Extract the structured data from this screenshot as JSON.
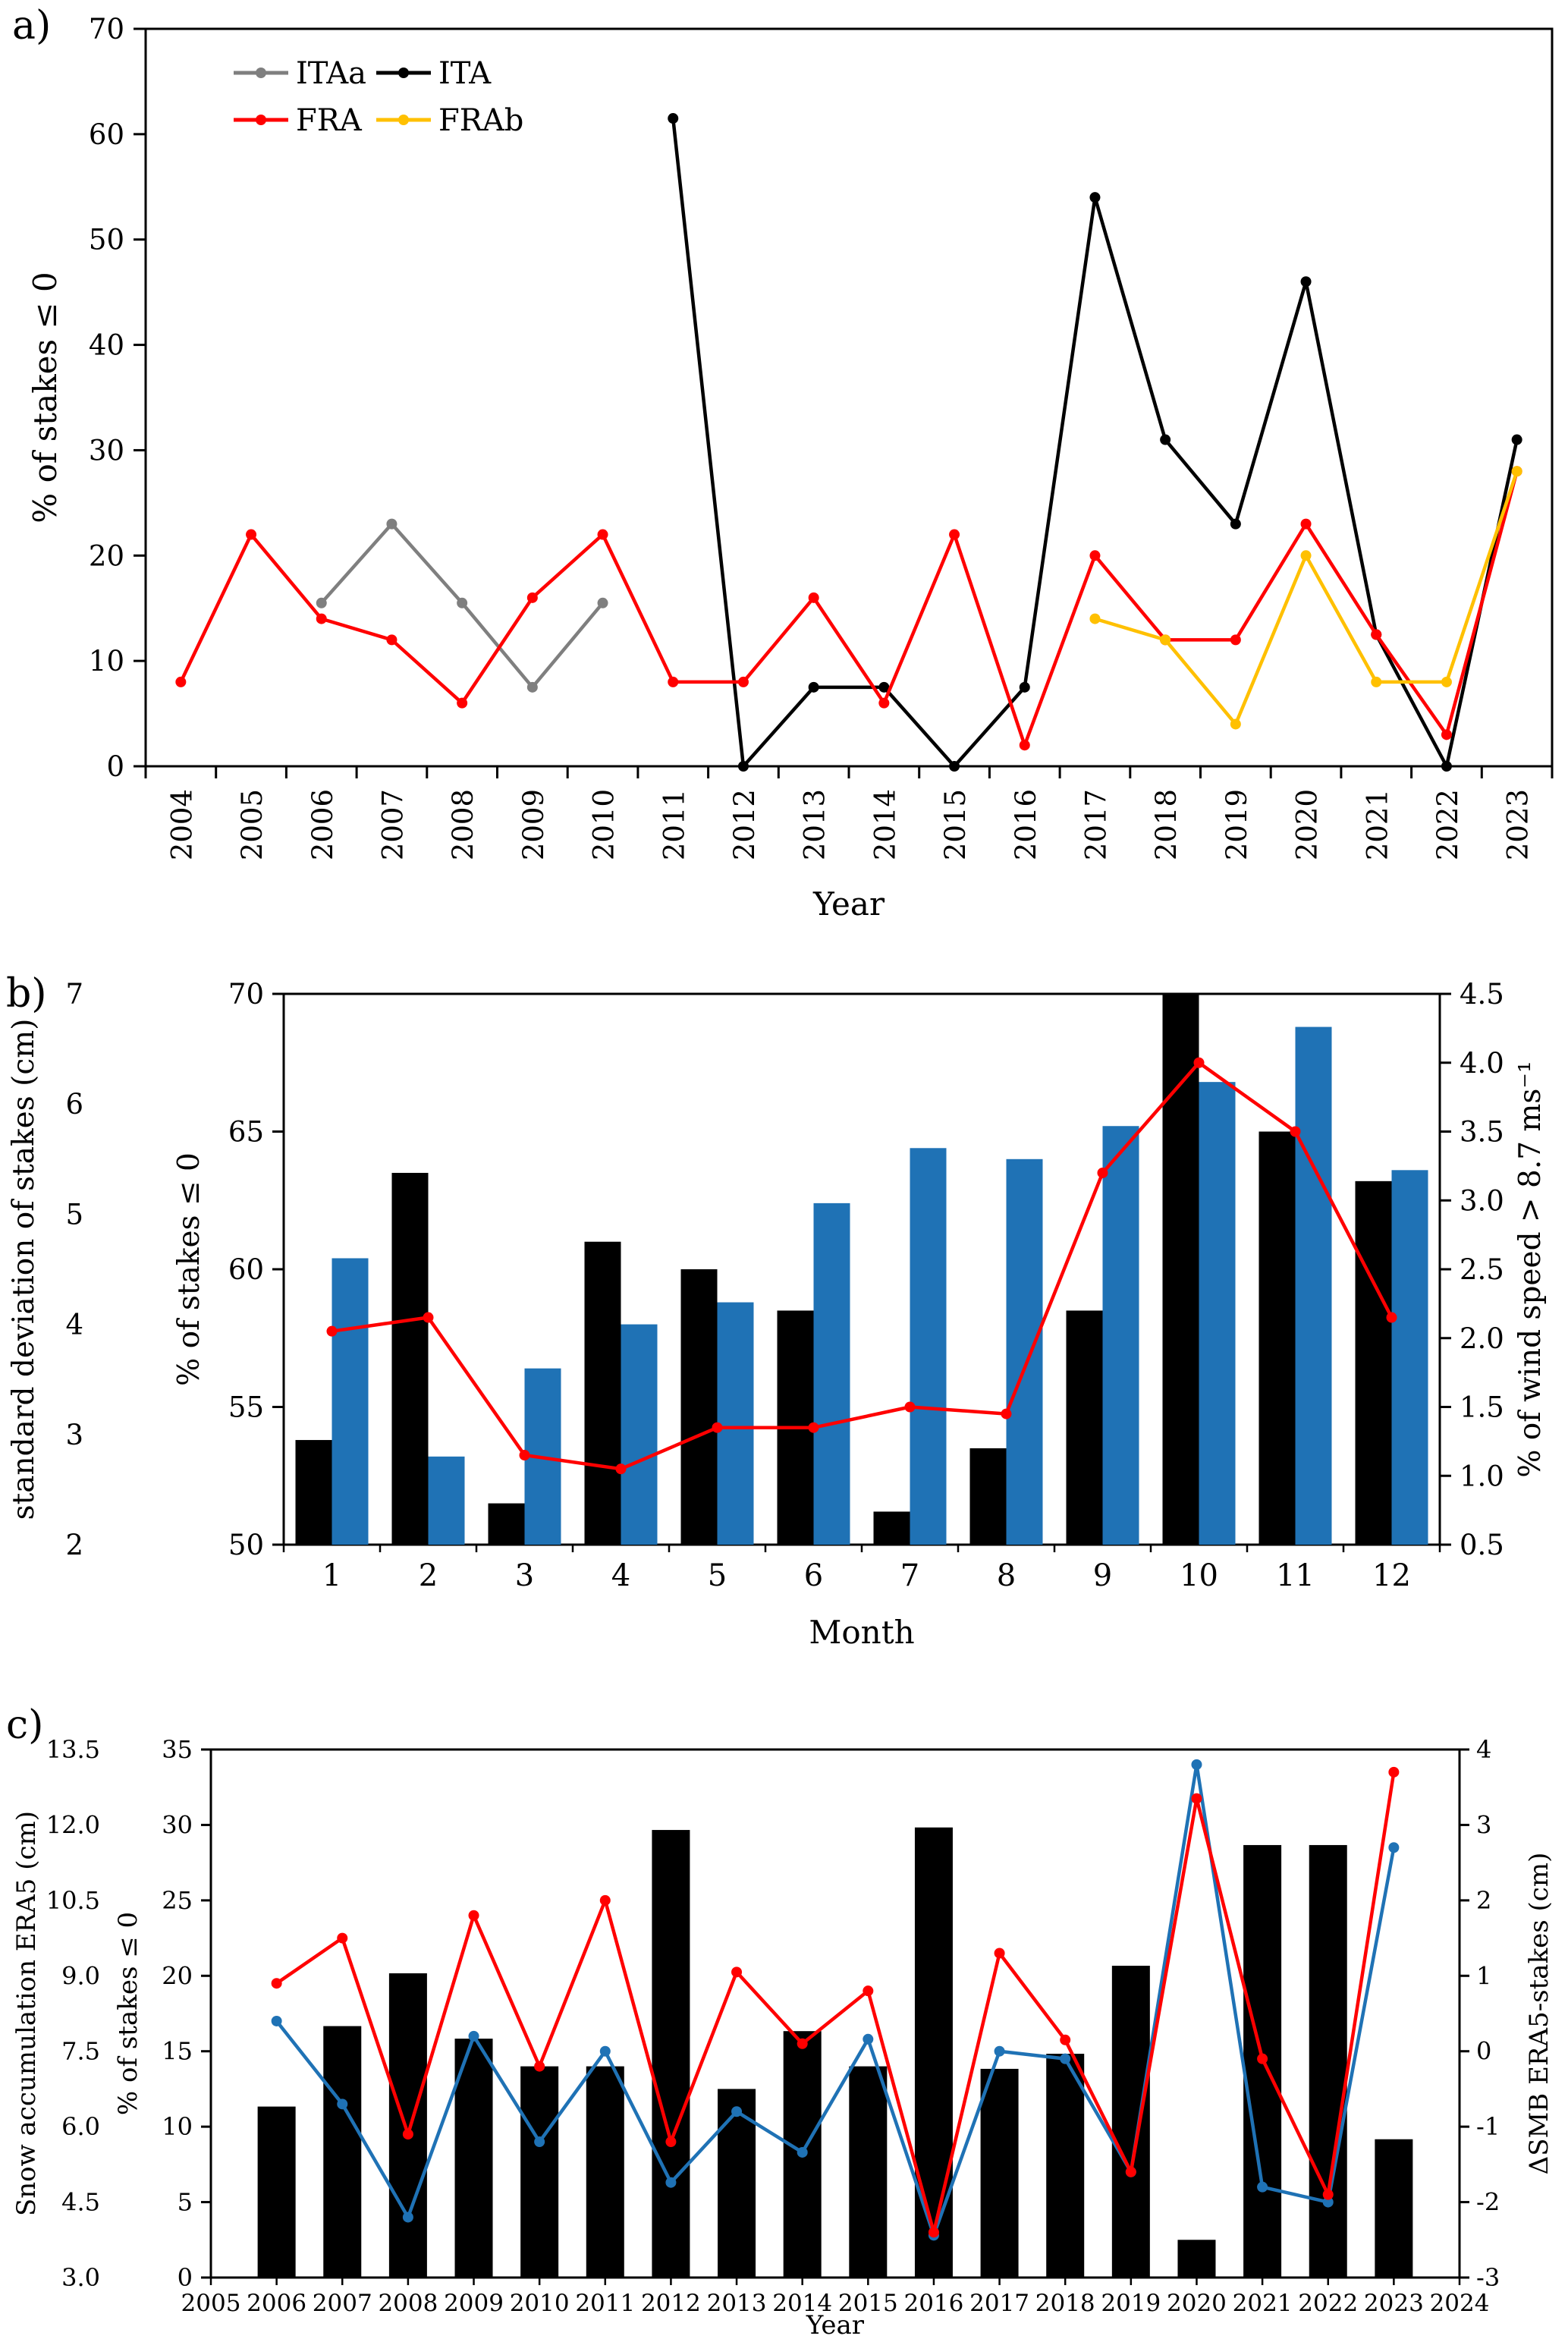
{
  "panels": {
    "a": {
      "label": "a)"
    },
    "b": {
      "label": "b)"
    },
    "c": {
      "label": "c)"
    }
  },
  "colors": {
    "black": "#000000",
    "gray": "#7F7F7F",
    "red": "#FF0000",
    "gold": "#FFC000",
    "blue": "#1F72B5"
  },
  "chart_data": [
    {
      "id": "a",
      "type": "line",
      "xlabel": "Year",
      "ylabel": "% of stakes ≤ 0",
      "ylim": [
        0,
        70
      ],
      "ytick_step": 10,
      "categories": [
        2004,
        2005,
        2006,
        2007,
        2008,
        2009,
        2010,
        2011,
        2012,
        2013,
        2014,
        2015,
        2016,
        2017,
        2018,
        2019,
        2020,
        2021,
        2022,
        2023
      ],
      "legend_rows": [
        [
          "ITAa",
          "ITA"
        ],
        [
          "FRA",
          "FRAb"
        ]
      ],
      "series": [
        {
          "name": "ITAa",
          "color": "#7F7F7F",
          "values": [
            null,
            null,
            15.5,
            23,
            15.5,
            7.5,
            15.5,
            null,
            null,
            null,
            null,
            null,
            null,
            null,
            null,
            null,
            null,
            null,
            null,
            null
          ]
        },
        {
          "name": "ITA",
          "color": "#000000",
          "values": [
            null,
            null,
            null,
            null,
            null,
            null,
            null,
            61.5,
            0,
            7.5,
            7.5,
            0,
            7.5,
            54,
            31,
            23,
            46,
            12.5,
            0,
            31
          ]
        },
        {
          "name": "FRA",
          "color": "#FF0000",
          "values": [
            8,
            22,
            14,
            12,
            6,
            16,
            22,
            8,
            8,
            16,
            6,
            22,
            2,
            20,
            12,
            12,
            23,
            12.5,
            3,
            28
          ]
        },
        {
          "name": "FRAb",
          "color": "#FFC000",
          "values": [
            null,
            null,
            null,
            null,
            null,
            null,
            null,
            null,
            null,
            null,
            null,
            null,
            null,
            14,
            12,
            4,
            20,
            8,
            8,
            28
          ]
        }
      ]
    },
    {
      "id": "b",
      "type": "bar+line",
      "xlabel": "Month",
      "categories": [
        1,
        2,
        3,
        4,
        5,
        6,
        7,
        8,
        9,
        10,
        11,
        12
      ],
      "left_axis_blue": {
        "label": "standard deviation of stakes (cm)",
        "lim": [
          2,
          7
        ],
        "step": 1,
        "color": "#1F72B5"
      },
      "left_axis_black": {
        "label": "% of stakes ≤ 0",
        "lim": [
          50,
          70
        ],
        "step": 5,
        "color": "#000000"
      },
      "right_axis_red": {
        "label": "% of wind speed > 8.7 ms⁻¹",
        "lim": [
          0.5,
          4.5
        ],
        "step": 0.5,
        "color": "#FF0000"
      },
      "series": [
        {
          "name": "% of stakes ≤ 0",
          "type": "bar",
          "axis": "black",
          "color": "#000000",
          "values": [
            53.8,
            63.5,
            51.5,
            61,
            60,
            58.5,
            51.2,
            53.5,
            58.5,
            70.5,
            65,
            63.2
          ]
        },
        {
          "name": "standard deviation of stakes (cm)",
          "type": "bar",
          "axis": "blue",
          "color": "#1F72B5",
          "values": [
            4.6,
            2.8,
            3.6,
            4.0,
            4.2,
            5.1,
            5.6,
            5.5,
            5.8,
            6.2,
            6.7,
            5.4
          ]
        },
        {
          "name": "% of wind speed > 8.7 ms⁻¹",
          "type": "line",
          "axis": "red",
          "color": "#FF0000",
          "values": [
            2.05,
            2.15,
            1.15,
            1.05,
            1.35,
            1.35,
            1.5,
            1.45,
            3.2,
            4.0,
            3.5,
            2.15
          ]
        }
      ]
    },
    {
      "id": "c",
      "type": "bar+line",
      "xlabel": "Year",
      "xlim": [
        2005,
        2024
      ],
      "years": [
        2006,
        2007,
        2008,
        2009,
        2010,
        2011,
        2012,
        2013,
        2014,
        2015,
        2016,
        2017,
        2018,
        2019,
        2020,
        2021,
        2022,
        2023
      ],
      "left_axis_black": {
        "label": "Snow accumulation ERA5 (cm)",
        "lim": [
          3.0,
          13.5
        ],
        "step": 1.5,
        "color": "#000000"
      },
      "left_axis_blue": {
        "label": "% of stakes ≤ 0",
        "lim": [
          0,
          35
        ],
        "step": 5,
        "color": "#1F72B5"
      },
      "right_axis_red": {
        "label": "ΔSMB ERA5-stakes (cm)",
        "lim": [
          -3,
          4
        ],
        "step": 1,
        "color": "#FF0000"
      },
      "series": [
        {
          "name": "Snow accumulation ERA5 (cm)",
          "type": "bar",
          "axis": "black",
          "color": "#000000",
          "values": [
            6.4,
            8.0,
            9.05,
            7.75,
            7.2,
            7.2,
            11.9,
            6.75,
            7.9,
            7.2,
            11.95,
            7.15,
            7.45,
            9.2,
            3.75,
            11.6,
            11.6,
            5.75
          ]
        },
        {
          "name": "% of stakes ≤ 0",
          "type": "line",
          "axis": "blue",
          "color": "#1F72B5",
          "values": [
            17,
            11.5,
            4,
            16,
            9,
            15,
            6.3,
            11,
            8.3,
            15.8,
            2.8,
            15,
            14.5,
            7,
            34,
            6,
            5,
            28.5
          ]
        },
        {
          "name": "ΔSMB ERA5-stakes (cm)",
          "type": "line",
          "axis": "red",
          "color": "#FF0000",
          "values": [
            0.9,
            1.5,
            -1.1,
            1.8,
            -0.2,
            2.0,
            -1.2,
            1.05,
            0.1,
            0.8,
            -2.4,
            1.3,
            0.15,
            -1.6,
            3.35,
            -0.1,
            -1.9,
            3.7
          ]
        }
      ]
    }
  ]
}
